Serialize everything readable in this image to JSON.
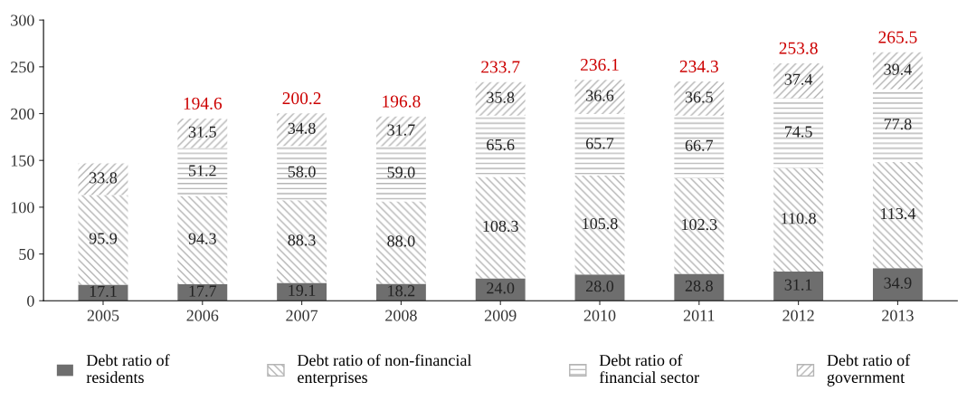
{
  "chart_data": {
    "type": "bar",
    "stacked": true,
    "categories": [
      "2005",
      "2006",
      "2007",
      "2008",
      "2009",
      "2010",
      "2011",
      "2012",
      "2013"
    ],
    "series": [
      {
        "name": "Debt ratio of\nresidents",
        "color": "#6e6e6e",
        "values": [
          17.1,
          17.7,
          19.1,
          18.2,
          24.0,
          28.0,
          28.8,
          31.1,
          34.9
        ],
        "value_labels": [
          "17.1",
          "17.7",
          "19.1",
          "18.2",
          "24.0",
          "28.0",
          "28.8",
          "31.1",
          "34.9"
        ]
      },
      {
        "name": "Debt ratio of non-financial\nenterprises",
        "color": "#b4b4b4",
        "values": [
          95.9,
          94.3,
          88.3,
          88.0,
          108.3,
          105.8,
          102.3,
          110.8,
          113.4
        ],
        "value_labels": [
          "95.9",
          "94.3",
          "88.3",
          "88.0",
          "108.3",
          "105.8",
          "102.3",
          "110.8",
          "113.4"
        ]
      },
      {
        "name": "Debt ratio of\nfinancial sector",
        "color": "#b4b4b4",
        "values": [
          null,
          51.2,
          58.0,
          59.0,
          65.6,
          65.7,
          66.7,
          74.5,
          77.8
        ],
        "value_labels": [
          null,
          "51.2",
          "58.0",
          "59.0",
          "65.6",
          "65.7",
          "66.7",
          "74.5",
          "77.8"
        ]
      },
      {
        "name": "Debt ratio of\ngovernment",
        "color": "#b4b4b4",
        "values": [
          33.8,
          31.5,
          34.8,
          31.7,
          35.8,
          36.6,
          36.5,
          37.4,
          39.4
        ],
        "value_labels": [
          "33.8",
          "31.5",
          "34.8",
          "31.7",
          "35.8",
          "36.6",
          "36.5",
          "37.4",
          "39.4"
        ]
      }
    ],
    "totals": [
      null,
      "194.6",
      "200.2",
      "196.8",
      "233.7",
      "236.1",
      "234.3",
      "253.8",
      "265.5"
    ],
    "ylim": [
      0,
      300
    ],
    "yticks": [
      0,
      50,
      100,
      150,
      200,
      250,
      300
    ],
    "grid": false,
    "legend": "bottom"
  }
}
